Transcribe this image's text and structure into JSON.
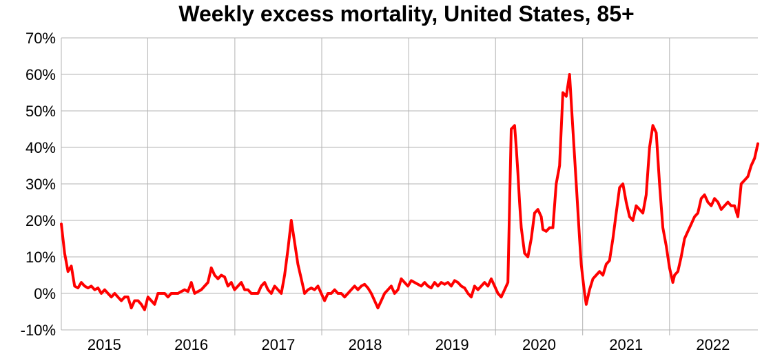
{
  "chart_data": {
    "type": "line",
    "title": "Weekly excess mortality, United States, 85+",
    "xlabel": "",
    "ylabel": "",
    "ylim": [
      -0.1,
      0.7
    ],
    "xlim": [
      "2015-01-03",
      "2023-01-07"
    ],
    "y_tick_labels": [
      "-10%",
      "0%",
      "10%",
      "20%",
      "30%",
      "40%",
      "50%",
      "60%",
      "70%"
    ],
    "x_tick_labels": [
      "2015",
      "2016",
      "2017",
      "2018",
      "2019",
      "2020",
      "2021",
      "2022"
    ],
    "grid": true,
    "legend": "none",
    "series_color": "#ff0000",
    "series": [
      {
        "x": [
          "2015-01-03",
          "2015-01-17",
          "2015-01-31",
          "2015-02-14",
          "2015-02-28",
          "2015-03-14",
          "2015-03-28",
          "2015-04-11",
          "2015-04-25",
          "2015-05-09",
          "2015-05-23",
          "2015-06-06",
          "2015-06-20",
          "2015-07-04",
          "2015-07-18",
          "2015-08-01",
          "2015-08-15",
          "2015-08-29",
          "2015-09-12",
          "2015-09-26",
          "2015-10-10",
          "2015-10-24",
          "2015-11-07",
          "2015-11-21",
          "2015-12-05",
          "2015-12-19",
          "2016-01-02",
          "2016-01-16",
          "2016-01-30",
          "2016-02-13",
          "2016-02-27",
          "2016-03-12",
          "2016-03-26",
          "2016-04-09",
          "2016-04-23",
          "2016-05-07",
          "2016-05-21",
          "2016-06-04",
          "2016-06-18",
          "2016-07-02",
          "2016-07-16",
          "2016-07-30",
          "2016-08-13",
          "2016-08-27",
          "2016-09-10",
          "2016-09-24",
          "2016-10-08",
          "2016-10-22",
          "2016-11-05",
          "2016-11-19",
          "2016-12-03",
          "2016-12-17",
          "2016-12-31",
          "2017-01-14",
          "2017-01-28",
          "2017-02-11",
          "2017-02-25",
          "2017-03-11",
          "2017-03-25",
          "2017-04-08",
          "2017-04-22",
          "2017-05-06",
          "2017-05-20",
          "2017-06-03",
          "2017-06-17",
          "2017-07-01",
          "2017-07-15",
          "2017-07-29",
          "2017-08-12",
          "2017-08-26",
          "2017-09-09",
          "2017-09-23",
          "2017-10-07",
          "2017-10-21",
          "2017-11-04",
          "2017-11-18",
          "2017-12-02",
          "2017-12-16",
          "2017-12-30",
          "2018-01-13",
          "2018-01-27",
          "2018-02-10",
          "2018-02-24",
          "2018-03-10",
          "2018-03-24",
          "2018-04-07",
          "2018-04-21",
          "2018-05-05",
          "2018-05-19",
          "2018-06-02",
          "2018-06-16",
          "2018-06-30",
          "2018-07-14",
          "2018-07-28",
          "2018-08-11",
          "2018-08-25",
          "2018-09-08",
          "2018-09-22",
          "2018-10-06",
          "2018-10-20",
          "2018-11-03",
          "2018-11-17",
          "2018-12-01",
          "2018-12-15",
          "2018-12-29",
          "2019-01-12",
          "2019-01-26",
          "2019-02-09",
          "2019-02-23",
          "2019-03-09",
          "2019-03-23",
          "2019-04-06",
          "2019-04-20",
          "2019-05-04",
          "2019-05-18",
          "2019-06-01",
          "2019-06-15",
          "2019-06-29",
          "2019-07-13",
          "2019-07-27",
          "2019-08-10",
          "2019-08-24",
          "2019-09-07",
          "2019-09-21",
          "2019-10-05",
          "2019-10-19",
          "2019-11-02",
          "2019-11-16",
          "2019-11-30",
          "2019-12-14",
          "2019-12-28",
          "2020-01-11",
          "2020-01-25",
          "2020-02-08",
          "2020-02-22",
          "2020-03-07",
          "2020-03-21",
          "2020-03-28",
          "2020-04-04",
          "2020-04-11",
          "2020-04-18",
          "2020-05-02",
          "2020-05-16",
          "2020-05-30",
          "2020-06-13",
          "2020-06-27",
          "2020-07-11",
          "2020-07-18",
          "2020-08-01",
          "2020-08-15",
          "2020-08-29",
          "2020-09-12",
          "2020-09-26",
          "2020-10-10",
          "2020-10-24",
          "2020-11-07",
          "2020-11-21",
          "2020-12-05",
          "2020-12-19",
          "2020-12-26",
          "2021-01-02",
          "2021-01-09",
          "2021-01-16",
          "2021-01-30",
          "2021-02-13",
          "2021-02-27",
          "2021-03-13",
          "2021-03-27",
          "2021-04-10",
          "2021-04-24",
          "2021-05-08",
          "2021-05-22",
          "2021-06-05",
          "2021-06-19",
          "2021-07-03",
          "2021-07-17",
          "2021-07-31",
          "2021-08-14",
          "2021-08-28",
          "2021-09-11",
          "2021-09-25",
          "2021-10-09",
          "2021-10-23",
          "2021-11-06",
          "2021-11-20",
          "2021-12-04",
          "2021-12-18",
          "2022-01-01",
          "2022-01-08",
          "2022-01-15",
          "2022-01-22",
          "2022-02-05",
          "2022-02-19",
          "2022-03-05",
          "2022-03-19",
          "2022-04-02",
          "2022-04-16",
          "2022-04-30",
          "2022-05-14",
          "2022-05-28",
          "2022-06-11",
          "2022-06-25",
          "2022-07-09",
          "2022-07-23",
          "2022-08-06",
          "2022-08-20",
          "2022-09-03",
          "2022-09-17",
          "2022-10-01",
          "2022-10-15",
          "2022-10-29",
          "2022-11-12",
          "2022-11-26",
          "2022-12-10",
          "2022-12-24",
          "2023-01-07"
        ],
        "values": [
          0.19,
          0.11,
          0.06,
          0.075,
          0.02,
          0.015,
          0.03,
          0.02,
          0.015,
          0.02,
          0.01,
          0.015,
          0.0,
          0.01,
          0.0,
          -0.01,
          0.0,
          -0.01,
          -0.02,
          -0.01,
          -0.01,
          -0.04,
          -0.02,
          -0.02,
          -0.03,
          -0.045,
          -0.01,
          -0.02,
          -0.03,
          0.0,
          0.0,
          0.0,
          -0.01,
          0.0,
          0.0,
          0.0,
          0.005,
          0.01,
          0.005,
          0.03,
          0.0,
          0.005,
          0.01,
          0.02,
          0.03,
          0.07,
          0.05,
          0.04,
          0.05,
          0.045,
          0.02,
          0.03,
          0.01,
          0.02,
          0.03,
          0.01,
          0.01,
          0.0,
          0.0,
          0.0,
          0.02,
          0.03,
          0.01,
          0.0,
          0.02,
          0.01,
          0.0,
          0.05,
          0.12,
          0.2,
          0.14,
          0.08,
          0.04,
          0.0,
          0.01,
          0.015,
          0.01,
          0.02,
          0.0,
          -0.02,
          0.0,
          0.0,
          0.01,
          0.0,
          0.0,
          -0.01,
          0.0,
          0.01,
          0.02,
          0.01,
          0.02,
          0.025,
          0.015,
          0.0,
          -0.02,
          -0.04,
          -0.02,
          0.0,
          0.01,
          0.02,
          0.0,
          0.01,
          0.04,
          0.03,
          0.02,
          0.035,
          0.03,
          0.025,
          0.02,
          0.03,
          0.02,
          0.015,
          0.03,
          0.02,
          0.03,
          0.025,
          0.03,
          0.02,
          0.035,
          0.03,
          0.02,
          0.015,
          0.0,
          -0.01,
          0.02,
          0.01,
          0.02,
          0.03,
          0.02,
          0.04,
          0.02,
          0.0,
          -0.01,
          0.01,
          0.03,
          0.45,
          0.46,
          0.4,
          0.33,
          0.25,
          0.18,
          0.11,
          0.1,
          0.15,
          0.22,
          0.23,
          0.21,
          0.175,
          0.17,
          0.18,
          0.18,
          0.3,
          0.35,
          0.55,
          0.54,
          0.6,
          0.45,
          0.3,
          0.15,
          0.08,
          0.04,
          0.0,
          -0.03,
          0.01,
          0.04,
          0.05,
          0.06,
          0.05,
          0.08,
          0.09,
          0.15,
          0.22,
          0.29,
          0.3,
          0.25,
          0.21,
          0.2,
          0.24,
          0.23,
          0.22,
          0.27,
          0.4,
          0.46,
          0.44,
          0.3,
          0.18,
          0.13,
          0.07,
          0.05,
          0.03,
          0.05,
          0.06,
          0.1,
          0.15,
          0.17,
          0.19,
          0.21,
          0.22,
          0.26,
          0.27,
          0.25,
          0.24,
          0.26,
          0.25,
          0.23,
          0.24,
          0.25,
          0.24,
          0.24,
          0.21,
          0.3,
          0.31,
          0.32,
          0.35,
          0.37,
          0.41
        ]
      }
    ]
  }
}
